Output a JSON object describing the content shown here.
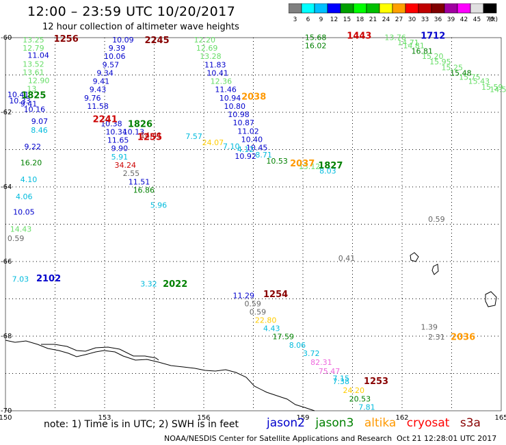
{
  "header": {
    "title": "12:00 – 23:59 UTC 10/20/2017",
    "subtitle": "12 hour collection of altimeter wave heights"
  },
  "colorbar": {
    "colors": [
      "#808080",
      "#00ffff",
      "#00c0ff",
      "#0000ff",
      "#00a000",
      "#00ff00",
      "#00c000",
      "#ffff00",
      "#ffa000",
      "#ff0000",
      "#c00000",
      "#800000",
      "#a000a0",
      "#ff00ff",
      "#e0e0e0",
      "#000000"
    ],
    "labels": [
      "3",
      "6",
      "9",
      "12",
      "15",
      "18",
      "21",
      "24",
      "27",
      "30",
      "33",
      "36",
      "39",
      "42",
      "45",
      "70"
    ],
    "unit": "(ft)"
  },
  "axes": {
    "x_ticks": [
      "150",
      "153",
      "156",
      "159",
      "162",
      "165"
    ],
    "y_ticks": [
      "-60",
      "-62",
      "-64",
      "-66",
      "-68",
      "-70"
    ]
  },
  "satellite_colors": {
    "jason2": "#0000cc",
    "jason3": "#008000",
    "altika": "#ff9900",
    "cryosat": "#ff0000",
    "s3a": "#880000",
    "light_green": "#66dd66",
    "cyan": "#00bbdd",
    "gray": "#666666",
    "pink": "#ee66dd",
    "yellow": "#ffcc00"
  },
  "observations": [
    {
      "t": "13.25",
      "c": "#66dd66",
      "lon": 150.52,
      "lat": -60.13
    },
    {
      "t": "12.79",
      "c": "#66dd66",
      "lon": 150.52,
      "lat": -60.35
    },
    {
      "t": "11.04",
      "c": "#0000cc",
      "lon": 150.67,
      "lat": -60.54
    },
    {
      "t": "13.52",
      "c": "#66dd66",
      "lon": 150.52,
      "lat": -60.78
    },
    {
      "t": "13.61",
      "c": "#66dd66",
      "lon": 150.52,
      "lat": -61.0
    },
    {
      "t": "12.90",
      "c": "#66dd66",
      "lon": 150.68,
      "lat": -61.22
    },
    {
      "t": "13",
      "c": "#66dd66",
      "lon": 150.65,
      "lat": -61.44
    },
    {
      "t": "10.41",
      "c": "#0000cc",
      "lon": 150.06,
      "lat": -61.6
    },
    {
      "t": "10.33",
      "c": "#0000cc",
      "lon": 150.11,
      "lat": -61.76
    },
    {
      "t": "9.41",
      "c": "#0000cc",
      "lon": 150.45,
      "lat": -61.84
    },
    {
      "t": "10.16",
      "c": "#0000cc",
      "lon": 150.55,
      "lat": -61.99
    },
    {
      "t": "9.07",
      "c": "#0000cc",
      "lon": 150.78,
      "lat": -62.31
    },
    {
      "t": "8.46",
      "c": "#00bbdd",
      "lon": 150.77,
      "lat": -62.55
    },
    {
      "t": "9.22",
      "c": "#0000cc",
      "lon": 150.57,
      "lat": -62.99
    },
    {
      "t": "16.20",
      "c": "#008000",
      "lon": 150.45,
      "lat": -63.42
    },
    {
      "t": "4.10",
      "c": "#00bbdd",
      "lon": 150.45,
      "lat": -63.87
    },
    {
      "t": "4.06",
      "c": "#00bbdd",
      "lon": 150.31,
      "lat": -64.33
    },
    {
      "t": "10.05",
      "c": "#0000cc",
      "lon": 150.23,
      "lat": -64.74
    },
    {
      "t": "14.43",
      "c": "#66dd66",
      "lon": 150.14,
      "lat": -65.2
    },
    {
      "t": "0.59",
      "c": "#666666",
      "lon": 150.06,
      "lat": -65.45
    },
    {
      "t": "10.09",
      "c": "#0000cc",
      "lon": 153.23,
      "lat": -60.13
    },
    {
      "t": "9.39",
      "c": "#0000cc",
      "lon": 153.12,
      "lat": -60.35
    },
    {
      "t": "10.06",
      "c": "#0000cc",
      "lon": 152.98,
      "lat": -60.57
    },
    {
      "t": "9.57",
      "c": "#0000cc",
      "lon": 152.93,
      "lat": -60.8
    },
    {
      "t": "9.34",
      "c": "#0000cc",
      "lon": 152.76,
      "lat": -61.02
    },
    {
      "t": "9.41",
      "c": "#0000cc",
      "lon": 152.64,
      "lat": -61.24
    },
    {
      "t": "9.43",
      "c": "#0000cc",
      "lon": 152.54,
      "lat": -61.46
    },
    {
      "t": "9.76",
      "c": "#0000cc",
      "lon": 152.38,
      "lat": -61.69
    },
    {
      "t": "11.58",
      "c": "#0000cc",
      "lon": 152.47,
      "lat": -61.91
    },
    {
      "t": "10.38",
      "c": "#0000cc",
      "lon": 152.88,
      "lat": -62.38
    },
    {
      "t": "10.34",
      "c": "#0000cc",
      "lon": 153.03,
      "lat": -62.6
    },
    {
      "t": "10.13",
      "c": "#0000cc",
      "lon": 153.55,
      "lat": -62.6
    },
    {
      "t": "11.65",
      "c": "#0000cc",
      "lon": 153.08,
      "lat": -62.82
    },
    {
      "t": "9.90",
      "c": "#0000cc",
      "lon": 153.2,
      "lat": -63.04
    },
    {
      "t": "14.41",
      "c": "#880000",
      "lon": 154.08,
      "lat": -62.69
    },
    {
      "t": "5.91",
      "c": "#00bbdd",
      "lon": 153.2,
      "lat": -63.27
    },
    {
      "t": "34.24",
      "c": "#cc0000",
      "lon": 153.3,
      "lat": -63.49
    },
    {
      "t": "2.55",
      "c": "#666666",
      "lon": 153.55,
      "lat": -63.71
    },
    {
      "t": "11.51",
      "c": "#0000cc",
      "lon": 153.72,
      "lat": -63.94
    },
    {
      "t": "16.86",
      "c": "#008000",
      "lon": 153.86,
      "lat": -64.16
    },
    {
      "t": "5.96",
      "c": "#00bbdd",
      "lon": 154.38,
      "lat": -64.56
    },
    {
      "t": "12.20",
      "c": "#66dd66",
      "lon": 155.7,
      "lat": -60.13
    },
    {
      "t": "12.69",
      "c": "#66dd66",
      "lon": 155.77,
      "lat": -60.35
    },
    {
      "t": "13.28",
      "c": "#66dd66",
      "lon": 155.88,
      "lat": -60.57
    },
    {
      "t": "11.83",
      "c": "#0000cc",
      "lon": 156.02,
      "lat": -60.8
    },
    {
      "t": "10.41",
      "c": "#0000cc",
      "lon": 156.09,
      "lat": -61.02
    },
    {
      "t": "12.36",
      "c": "#66dd66",
      "lon": 156.2,
      "lat": -61.24
    },
    {
      "t": "11.46",
      "c": "#0000cc",
      "lon": 156.34,
      "lat": -61.46
    },
    {
      "t": "10.94",
      "c": "#0000cc",
      "lon": 156.47,
      "lat": -61.69
    },
    {
      "t": "10.80",
      "c": "#0000cc",
      "lon": 156.61,
      "lat": -61.91
    },
    {
      "t": "10.98",
      "c": "#0000cc",
      "lon": 156.73,
      "lat": -62.13
    },
    {
      "t": "10.87",
      "c": "#0000cc",
      "lon": 156.88,
      "lat": -62.35
    },
    {
      "t": "11.02",
      "c": "#0000cc",
      "lon": 157.02,
      "lat": -62.58
    },
    {
      "t": "10.40",
      "c": "#0000cc",
      "lon": 157.13,
      "lat": -62.8
    },
    {
      "t": "10.45",
      "c": "#0000cc",
      "lon": 157.28,
      "lat": -63.02
    },
    {
      "t": "10.92",
      "c": "#0000cc",
      "lon": 156.94,
      "lat": -63.25
    },
    {
      "t": "8.71",
      "c": "#00bbdd",
      "lon": 157.56,
      "lat": -63.21
    },
    {
      "t": "7.57",
      "c": "#00bbdd",
      "lon": 155.45,
      "lat": -62.72
    },
    {
      "t": "24.07",
      "c": "#ffcc00",
      "lon": 155.95,
      "lat": -62.88
    },
    {
      "t": "7.10",
      "c": "#00bbdd",
      "lon": 156.58,
      "lat": -62.98
    },
    {
      "t": "4.12",
      "c": "#00bbdd",
      "lon": 157.01,
      "lat": -63.06
    },
    {
      "t": "10.53",
      "c": "#008000",
      "lon": 157.89,
      "lat": -63.38
    },
    {
      "t": "13.12",
      "c": "#66dd66",
      "lon": 158.87,
      "lat": -63.52
    },
    {
      "t": "8.03",
      "c": "#00bbdd",
      "lon": 159.5,
      "lat": -63.64
    },
    {
      "t": "15.68",
      "c": "#008000",
      "lon": 159.06,
      "lat": -60.06
    },
    {
      "t": "16.02",
      "c": "#008000",
      "lon": 159.06,
      "lat": -60.28
    },
    {
      "t": "13.76",
      "c": "#66dd66",
      "lon": 161.47,
      "lat": -60.06
    },
    {
      "t": "14.71",
      "c": "#66dd66",
      "lon": 161.86,
      "lat": -60.2
    },
    {
      "t": "14.81",
      "c": "#66dd66",
      "lon": 162.03,
      "lat": -60.28
    },
    {
      "t": "16.81",
      "c": "#008000",
      "lon": 162.28,
      "lat": -60.43
    },
    {
      "t": "15.20",
      "c": "#66dd66",
      "lon": 162.6,
      "lat": -60.57
    },
    {
      "t": "15.95",
      "c": "#66dd66",
      "lon": 162.83,
      "lat": -60.72
    },
    {
      "t": "15.25",
      "c": "#66dd66",
      "lon": 163.19,
      "lat": -60.87
    },
    {
      "t": "15.48",
      "c": "#008000",
      "lon": 163.45,
      "lat": -61.02
    },
    {
      "t": "15.75",
      "c": "#66dd66",
      "lon": 163.72,
      "lat": -61.13
    },
    {
      "t": "15.43",
      "c": "#66dd66",
      "lon": 164.0,
      "lat": -61.24
    },
    {
      "t": "15.59",
      "c": "#66dd66",
      "lon": 164.4,
      "lat": -61.39
    },
    {
      "t": "14.53",
      "c": "#66dd66",
      "lon": 164.65,
      "lat": -61.46
    },
    {
      "t": "0.59",
      "c": "#666666",
      "lon": 162.79,
      "lat": -64.94
    },
    {
      "t": "0.41",
      "c": "#666666",
      "lon": 160.07,
      "lat": -65.98
    },
    {
      "t": "7.03",
      "c": "#00bbdd",
      "lon": 150.2,
      "lat": -66.54
    },
    {
      "t": "3.32",
      "c": "#00bbdd",
      "lon": 154.08,
      "lat": -66.67
    },
    {
      "t": "11.29",
      "c": "#0000cc",
      "lon": 156.88,
      "lat": -66.98
    },
    {
      "t": "0.59",
      "c": "#666666",
      "lon": 157.23,
      "lat": -67.2
    },
    {
      "t": "0.59",
      "c": "#666666",
      "lon": 157.38,
      "lat": -67.42
    },
    {
      "t": "22.80",
      "c": "#ffcc00",
      "lon": 157.55,
      "lat": -67.64
    },
    {
      "t": "4.43",
      "c": "#00bbdd",
      "lon": 157.8,
      "lat": -67.86
    },
    {
      "t": "17.59",
      "c": "#008000",
      "lon": 158.08,
      "lat": -68.08
    },
    {
      "t": "8.06",
      "c": "#00bbdd",
      "lon": 158.58,
      "lat": -68.31
    },
    {
      "t": "3.72",
      "c": "#00bbdd",
      "lon": 159.0,
      "lat": -68.53
    },
    {
      "t": "1.39",
      "c": "#666666",
      "lon": 162.57,
      "lat": -67.83
    },
    {
      "t": "2.31",
      "c": "#666666",
      "lon": 162.79,
      "lat": -68.09
    },
    {
      "t": "82.31",
      "c": "#ee66dd",
      "lon": 159.23,
      "lat": -68.77
    },
    {
      "t": "75.47",
      "c": "#ee66dd",
      "lon": 159.47,
      "lat": -69.01
    },
    {
      "t": "7.15",
      "c": "#00bbdd",
      "lon": 159.9,
      "lat": -69.2
    },
    {
      "t": "7.38",
      "c": "#00bbdd",
      "lon": 159.9,
      "lat": -69.28
    },
    {
      "t": "24.20",
      "c": "#ffcc00",
      "lon": 160.21,
      "lat": -69.52
    },
    {
      "t": "20.53",
      "c": "#008000",
      "lon": 160.4,
      "lat": -69.75
    },
    {
      "t": "7.81",
      "c": "#00bbdd",
      "lon": 160.68,
      "lat": -69.97
    }
  ],
  "pass_times": [
    {
      "t": "1256",
      "c": "#880000",
      "lon": 151.46,
      "lat": -60.11
    },
    {
      "t": "2245",
      "c": "#880000",
      "lon": 154.21,
      "lat": -60.15
    },
    {
      "t": "1825",
      "c": "#008000",
      "lon": 150.48,
      "lat": -61.62
    },
    {
      "t": "2241",
      "c": "#cc0000",
      "lon": 152.64,
      "lat": -62.27
    },
    {
      "t": "1826",
      "c": "#008000",
      "lon": 153.7,
      "lat": -62.39
    },
    {
      "t": "1255",
      "c": "#cc0000",
      "lon": 153.99,
      "lat": -62.74
    },
    {
      "t": "2038",
      "c": "#ff9900",
      "lon": 157.14,
      "lat": -61.66
    },
    {
      "t": "2037",
      "c": "#ff9900",
      "lon": 158.61,
      "lat": -63.45
    },
    {
      "t": "1827",
      "c": "#008000",
      "lon": 159.46,
      "lat": -63.5
    },
    {
      "t": "1443",
      "c": "#cc0000",
      "lon": 160.33,
      "lat": -60.03
    },
    {
      "t": "1712",
      "c": "#0000cc",
      "lon": 162.56,
      "lat": -60.03
    },
    {
      "t": "2102",
      "c": "#0000cc",
      "lon": 150.93,
      "lat": -66.53
    },
    {
      "t": "2022",
      "c": "#008000",
      "lon": 154.76,
      "lat": -66.68
    },
    {
      "t": "1254",
      "c": "#880000",
      "lon": 157.8,
      "lat": -66.95
    },
    {
      "t": "2036",
      "c": "#ff9900",
      "lon": 163.47,
      "lat": -68.1
    },
    {
      "t": "1253",
      "c": "#880000",
      "lon": 160.84,
      "lat": -69.28
    }
  ],
  "note": "note: 1) Time is in UTC; 2) SWH is in feet",
  "legend": {
    "jason2": "jason2",
    "jason3": "jason3",
    "altika": "altika",
    "cryosat": "cryosat",
    "s3a": "s3a"
  },
  "footer": {
    "center": "NOAA/NESDIS Center for Satellite Applications and Research",
    "right": "Oct 21 12:28:01 UTC 2017"
  }
}
